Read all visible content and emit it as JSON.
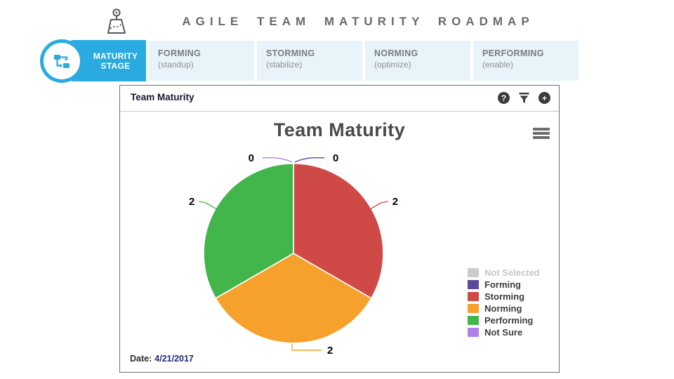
{
  "header": {
    "title": "AGILE TEAM MATURITY ROADMAP"
  },
  "stage_bar": {
    "label_line1": "MATURITY",
    "label_line2": "STAGE",
    "stages": [
      {
        "name": "FORMING",
        "subtitle": "(standup)"
      },
      {
        "name": "STORMING",
        "subtitle": "(stabilize)"
      },
      {
        "name": "NORMING",
        "subtitle": "(optimize)"
      },
      {
        "name": "PERFORMING",
        "subtitle": "(enable)"
      }
    ]
  },
  "panel": {
    "title": "Team Maturity",
    "icons": {
      "help_glyph": "?",
      "add_glyph": "+"
    },
    "date_label": "Date:",
    "date_value": "4/21/2017"
  },
  "chart_data": {
    "type": "pie",
    "title": "Team Maturity",
    "date": "4/21/2017",
    "start_angle_deg": 0,
    "direction": "clockwise",
    "legend_position": "right",
    "slices": [
      {
        "label": "Forming",
        "value": 0,
        "color": "#5b4a9b"
      },
      {
        "label": "Storming",
        "value": 2,
        "color": "#cf4a46"
      },
      {
        "label": "Norming",
        "value": 2,
        "color": "#f6a12b"
      },
      {
        "label": "Performing",
        "value": 2,
        "color": "#42b54b"
      },
      {
        "label": "Not Sure",
        "value": 0,
        "color": "#b27ee8"
      }
    ],
    "legend": [
      {
        "label": "Not Selected",
        "color": "#cccccc",
        "muted": true
      },
      {
        "label": "Forming",
        "color": "#5b4a9b",
        "muted": false
      },
      {
        "label": "Storming",
        "color": "#cf4a46",
        "muted": false
      },
      {
        "label": "Norming",
        "color": "#f6a12b",
        "muted": false
      },
      {
        "label": "Performing",
        "color": "#42b54b",
        "muted": false
      },
      {
        "label": "Not Sure",
        "color": "#b27ee8",
        "muted": false
      }
    ],
    "accent_colors": {
      "stage_blue": "#29abe2",
      "stage_bg": "#e8f4fa"
    }
  }
}
